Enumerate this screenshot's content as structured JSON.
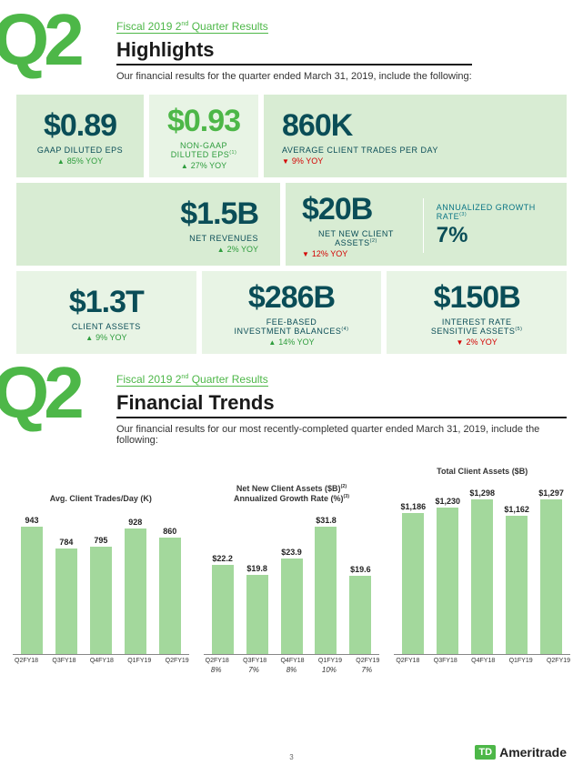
{
  "colors": {
    "accent_green": "#4db748",
    "teal": "#0a4d57",
    "tile_bg": "#d8ecd3",
    "tile_bg_light": "#e8f4e5",
    "bar_color": "#a3d89c",
    "up": "#2d9c3c",
    "down": "#d40000"
  },
  "highlights": {
    "q2": "Q2",
    "eyebrow_prefix": "Fiscal 2019 2",
    "eyebrow_suffix": " Quarter Results",
    "title": "Highlights",
    "sub": "Our financial results for the quarter ended March 31, 2019, include the following:",
    "row1": {
      "gaap": {
        "value": "$0.89",
        "label": "GAAP DILUTED EPS",
        "yoy": "85% YOY",
        "dir": "up"
      },
      "nongaap": {
        "value": "$0.93",
        "label_l1": "NON-GAAP",
        "label_l2": "DILUTED EPS",
        "note": "(1)",
        "yoy": "27% YOY",
        "dir": "up"
      },
      "trades": {
        "value": "860K",
        "label": "AVERAGE CLIENT TRADES PER DAY",
        "yoy": "9% YOY",
        "dir": "down"
      }
    },
    "row2": {
      "rev": {
        "value": "$1.5B",
        "label": "NET REVENUES",
        "yoy": "2% YOY",
        "dir": "up"
      },
      "nnca": {
        "value": "$20B",
        "label": "NET NEW CLIENT ASSETS",
        "note": "(2)",
        "yoy": "12% YOY",
        "dir": "down"
      },
      "growth": {
        "label": "ANNUALIZED GROWTH RATE",
        "note": "(3)",
        "value": "7%"
      }
    },
    "row3": {
      "assets": {
        "value": "$1.3T",
        "label": "CLIENT ASSETS",
        "yoy": "9% YOY",
        "dir": "up"
      },
      "feebased": {
        "value": "$286B",
        "label_l1": "FEE-BASED",
        "label_l2": "INVESTMENT BALANCES",
        "note": "(4)",
        "yoy": "14% YOY",
        "dir": "up"
      },
      "irs": {
        "value": "$150B",
        "label_l1": "INTEREST RATE",
        "label_l2": "SENSITIVE ASSETS",
        "note": "(5)",
        "yoy": "2% YOY",
        "dir": "down"
      }
    }
  },
  "trends": {
    "q2": "Q2",
    "eyebrow_prefix": "Fiscal 2019 2",
    "eyebrow_suffix": " Quarter Results",
    "title": "Financial Trends",
    "sub": "Our financial results for our most recently-completed quarter ended March 31, 2019, include the following:"
  },
  "charts": {
    "xlabels": [
      "Q2FY18",
      "Q3FY18",
      "Q4FY18",
      "Q1FY19",
      "Q2FY19"
    ],
    "trades": {
      "title": "Avg. Client Trades/Day (K)",
      "values": [
        943,
        784,
        795,
        928,
        860
      ],
      "labels": [
        "943",
        "784",
        "795",
        "928",
        "860"
      ],
      "ymax": 943
    },
    "nnca": {
      "title_l1": "Net New Client Assets ($B)",
      "title_sup1": "(2)",
      "title_l2": "Annualized Growth Rate (%)",
      "title_sup2": "(3)",
      "values": [
        22.2,
        19.8,
        23.9,
        31.8,
        19.6
      ],
      "labels": [
        "$22.2",
        "$19.8",
        "$23.9",
        "$31.8",
        "$19.6"
      ],
      "ymax": 31.8,
      "pcts": [
        "8%",
        "7%",
        "8%",
        "10%",
        "7%"
      ]
    },
    "tca": {
      "title": "Total Client Assets ($B)",
      "values": [
        1186,
        1230,
        1298,
        1162,
        1297
      ],
      "labels": [
        "$1,186",
        "$1,230",
        "$1,298",
        "$1,162",
        "$1,297"
      ],
      "ymax": 1298
    }
  },
  "footer": {
    "logo": "TD",
    "brand_bold": "Ameri",
    "brand_rest": "trade",
    "page": "3"
  }
}
